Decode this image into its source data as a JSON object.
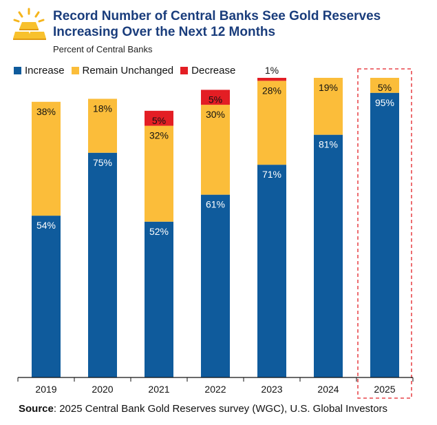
{
  "header": {
    "title_line1": "Record Number of Central Banks See Gold Reserves",
    "title_line2": "Increasing Over the Next 12 Months",
    "subtitle": "Percent of Central Banks",
    "logo_icon": "gold-bars-icon"
  },
  "legend": [
    {
      "name": "Increase",
      "color": "#0f5b9c"
    },
    {
      "name": "Remain Unchanged",
      "color": "#fbbd3a"
    },
    {
      "name": "Decrease",
      "color": "#e31e24"
    }
  ],
  "chart_data": {
    "type": "bar",
    "stacked": true,
    "categories": [
      "2019",
      "2020",
      "2021",
      "2022",
      "2023",
      "2024",
      "2025"
    ],
    "series": [
      {
        "name": "Increase",
        "color": "#0f5b9c",
        "values": [
          54,
          75,
          52,
          61,
          71,
          81,
          95
        ],
        "labels": [
          "54%",
          "75%",
          "52%",
          "61%",
          "71%",
          "81%",
          "95%"
        ]
      },
      {
        "name": "Remain Unchanged",
        "color": "#fbbd3a",
        "values": [
          38,
          18,
          32,
          30,
          28,
          19,
          5
        ],
        "labels": [
          "38%",
          "18%",
          "32%",
          "30%",
          "28%",
          "19%",
          "5%"
        ]
      },
      {
        "name": "Decrease",
        "color": "#e31e24",
        "values": [
          0,
          0,
          5,
          5,
          1,
          0,
          0
        ],
        "labels": [
          "",
          "",
          "5%",
          "5%",
          "1%",
          "",
          ""
        ]
      }
    ],
    "ylim": [
      0,
      100
    ],
    "highlight_category": "2025",
    "highlight_color": "#e31e24"
  },
  "source": {
    "label": "Source",
    "text": ": 2025 Central Bank Gold Reserves survey (WGC), U.S. Global Investors"
  }
}
